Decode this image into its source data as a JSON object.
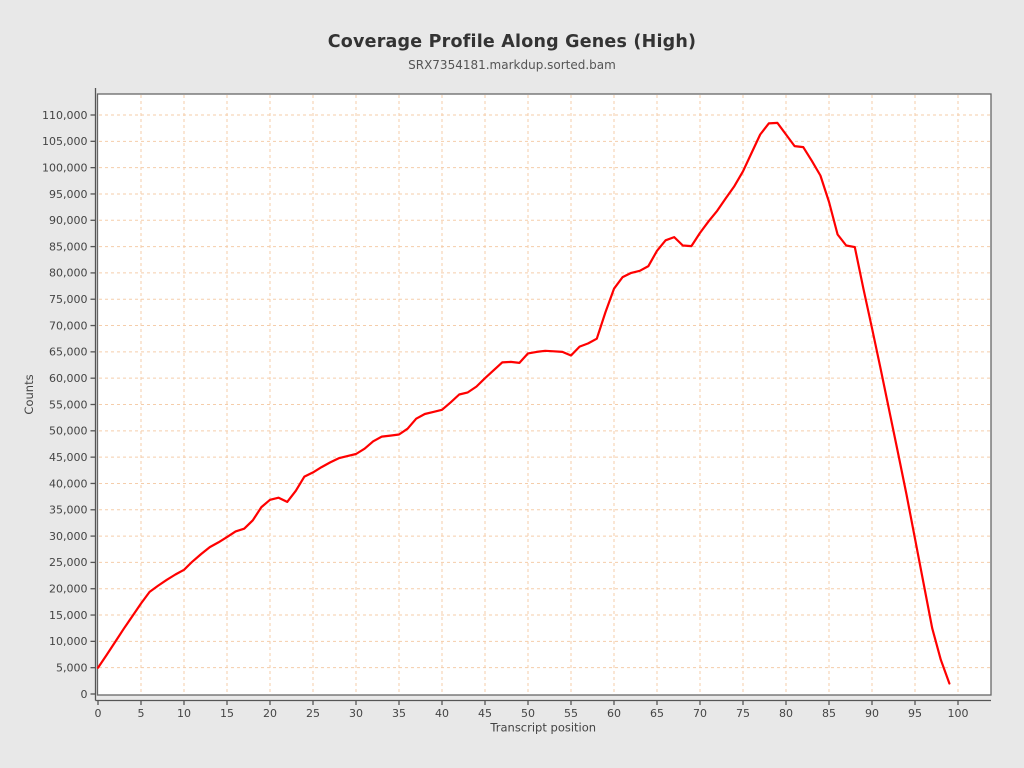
{
  "header": {
    "title": "Coverage Profile Along Genes (High)",
    "subtitle": "SRX7354181.markdup.sorted.bam"
  },
  "chart_data": {
    "type": "line",
    "title": "Coverage Profile Along Genes (High)",
    "subtitle": "SRX7354181.markdup.sorted.bam",
    "xlabel": "Transcript position",
    "ylabel": "Counts",
    "grid": true,
    "legend_position": "none",
    "xlim": [
      0,
      103.8
    ],
    "ylim": [
      0,
      114000
    ],
    "x_ticks": [
      0,
      5,
      10,
      15,
      20,
      25,
      30,
      35,
      40,
      45,
      50,
      55,
      60,
      65,
      70,
      75,
      80,
      85,
      90,
      95,
      100
    ],
    "y_ticks": [
      0,
      5000,
      10000,
      15000,
      20000,
      25000,
      30000,
      35000,
      40000,
      45000,
      50000,
      55000,
      60000,
      65000,
      70000,
      75000,
      80000,
      85000,
      90000,
      95000,
      100000,
      105000,
      110000
    ],
    "series": [
      {
        "name": "SRX7354181.markdup.sorted.bam",
        "color": "#ff0000",
        "x": [
          0,
          1,
          2,
          3,
          4,
          5,
          6,
          7,
          8,
          9,
          10,
          11,
          12,
          13,
          14,
          15,
          16,
          17,
          18,
          19,
          20,
          21,
          22,
          23,
          24,
          25,
          26,
          27,
          28,
          29,
          30,
          31,
          32,
          33,
          34,
          35,
          36,
          37,
          38,
          39,
          40,
          41,
          42,
          43,
          44,
          45,
          46,
          47,
          48,
          49,
          50,
          51,
          52,
          53,
          54,
          55,
          56,
          57,
          58,
          59,
          60,
          61,
          62,
          63,
          64,
          65,
          66,
          67,
          68,
          69,
          70,
          71,
          72,
          73,
          74,
          75,
          76,
          77,
          78,
          79,
          80,
          81,
          82,
          83,
          84,
          85,
          86,
          87,
          88,
          89,
          90,
          91,
          92,
          93,
          94,
          95,
          96,
          97,
          98,
          99
        ],
        "values": [
          5000,
          7400,
          9900,
          12400,
          14800,
          17200,
          19400,
          20600,
          21700,
          22700,
          23600,
          25200,
          26600,
          27900,
          28800,
          29800,
          30900,
          31400,
          33000,
          35500,
          36900,
          37300,
          36500,
          38600,
          41300,
          42100,
          43100,
          44000,
          44800,
          45200,
          45600,
          46600,
          48000,
          48900,
          49100,
          49300,
          50400,
          52300,
          53200,
          53600,
          54000,
          55400,
          56900,
          57300,
          58400,
          60000,
          61500,
          63000,
          63100,
          62900,
          64700,
          65000,
          65200,
          65100,
          65000,
          64300,
          66000,
          66600,
          67500,
          72500,
          77000,
          79200,
          80000,
          80400,
          81300,
          84200,
          86200,
          86800,
          85200,
          85100,
          87600,
          89800,
          91800,
          94200,
          96500,
          99300,
          102800,
          106300,
          108400,
          108500,
          106300,
          104100,
          103900,
          101300,
          98500,
          93500,
          87300,
          85200,
          84900,
          77000,
          69500,
          61800,
          53900,
          46000,
          38000,
          29500,
          21000,
          12500,
          6500,
          2000
        ]
      }
    ]
  },
  "colors": {
    "canvas_bg": "#e8e8e8",
    "plot_bg": "#ffffff",
    "grid": "#f5cdaa",
    "line": "#ff0000",
    "plot_border": "#666666",
    "axis": "#555555",
    "tick_text": "#444444",
    "title_text": "#333333",
    "subtitle_text": "#555555"
  }
}
